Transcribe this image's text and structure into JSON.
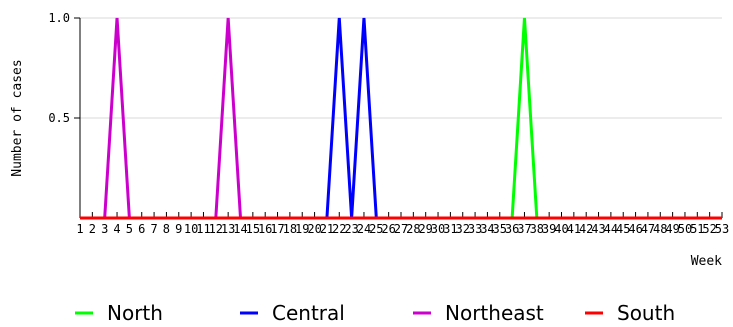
{
  "chart_data": {
    "type": "line",
    "xlabel": "Week",
    "ylabel": "Number of cases",
    "xlim": [
      1,
      53
    ],
    "ylim": [
      0,
      1.0
    ],
    "y_ticks": [
      {
        "value": 1.0,
        "label": "1.0"
      },
      {
        "value": 0.5,
        "label": "0.5"
      }
    ],
    "x_tick_labels": [
      "1",
      "2",
      "3",
      "4",
      "5",
      "6",
      "7",
      "8",
      "9",
      "10",
      "11",
      "12",
      "13",
      "14",
      "15",
      "16",
      "17",
      "18",
      "19",
      "20",
      "21",
      "22",
      "23",
      "24",
      "25",
      "26",
      "27",
      "28",
      "29",
      "30",
      "31",
      "32",
      "33",
      "34",
      "35",
      "36",
      "37",
      "38",
      "39",
      "40",
      "41",
      "42",
      "43",
      "44",
      "45",
      "46",
      "47",
      "48",
      "49",
      "50",
      "51",
      "52",
      "53"
    ],
    "grid": "horizontal",
    "legend_position": "bottom",
    "series": [
      {
        "name": "North",
        "color": "#00ff00",
        "points": [
          [
            1,
            0
          ],
          [
            36,
            0
          ],
          [
            37,
            1
          ],
          [
            38,
            0
          ],
          [
            53,
            0
          ]
        ]
      },
      {
        "name": "Central",
        "color": "#0000ff",
        "points": [
          [
            1,
            0
          ],
          [
            21,
            0
          ],
          [
            22,
            1
          ],
          [
            23,
            0
          ],
          [
            24,
            1
          ],
          [
            25,
            0
          ],
          [
            53,
            0
          ]
        ]
      },
      {
        "name": "Northeast",
        "color": "#cc00cc",
        "points": [
          [
            1,
            0
          ],
          [
            3,
            0
          ],
          [
            4,
            1
          ],
          [
            5,
            0
          ],
          [
            12,
            0
          ],
          [
            13,
            1
          ],
          [
            14,
            0
          ],
          [
            53,
            0
          ]
        ]
      },
      {
        "name": "South",
        "color": "#ff0000",
        "points": [
          [
            1,
            0
          ],
          [
            53,
            0
          ]
        ]
      }
    ]
  }
}
